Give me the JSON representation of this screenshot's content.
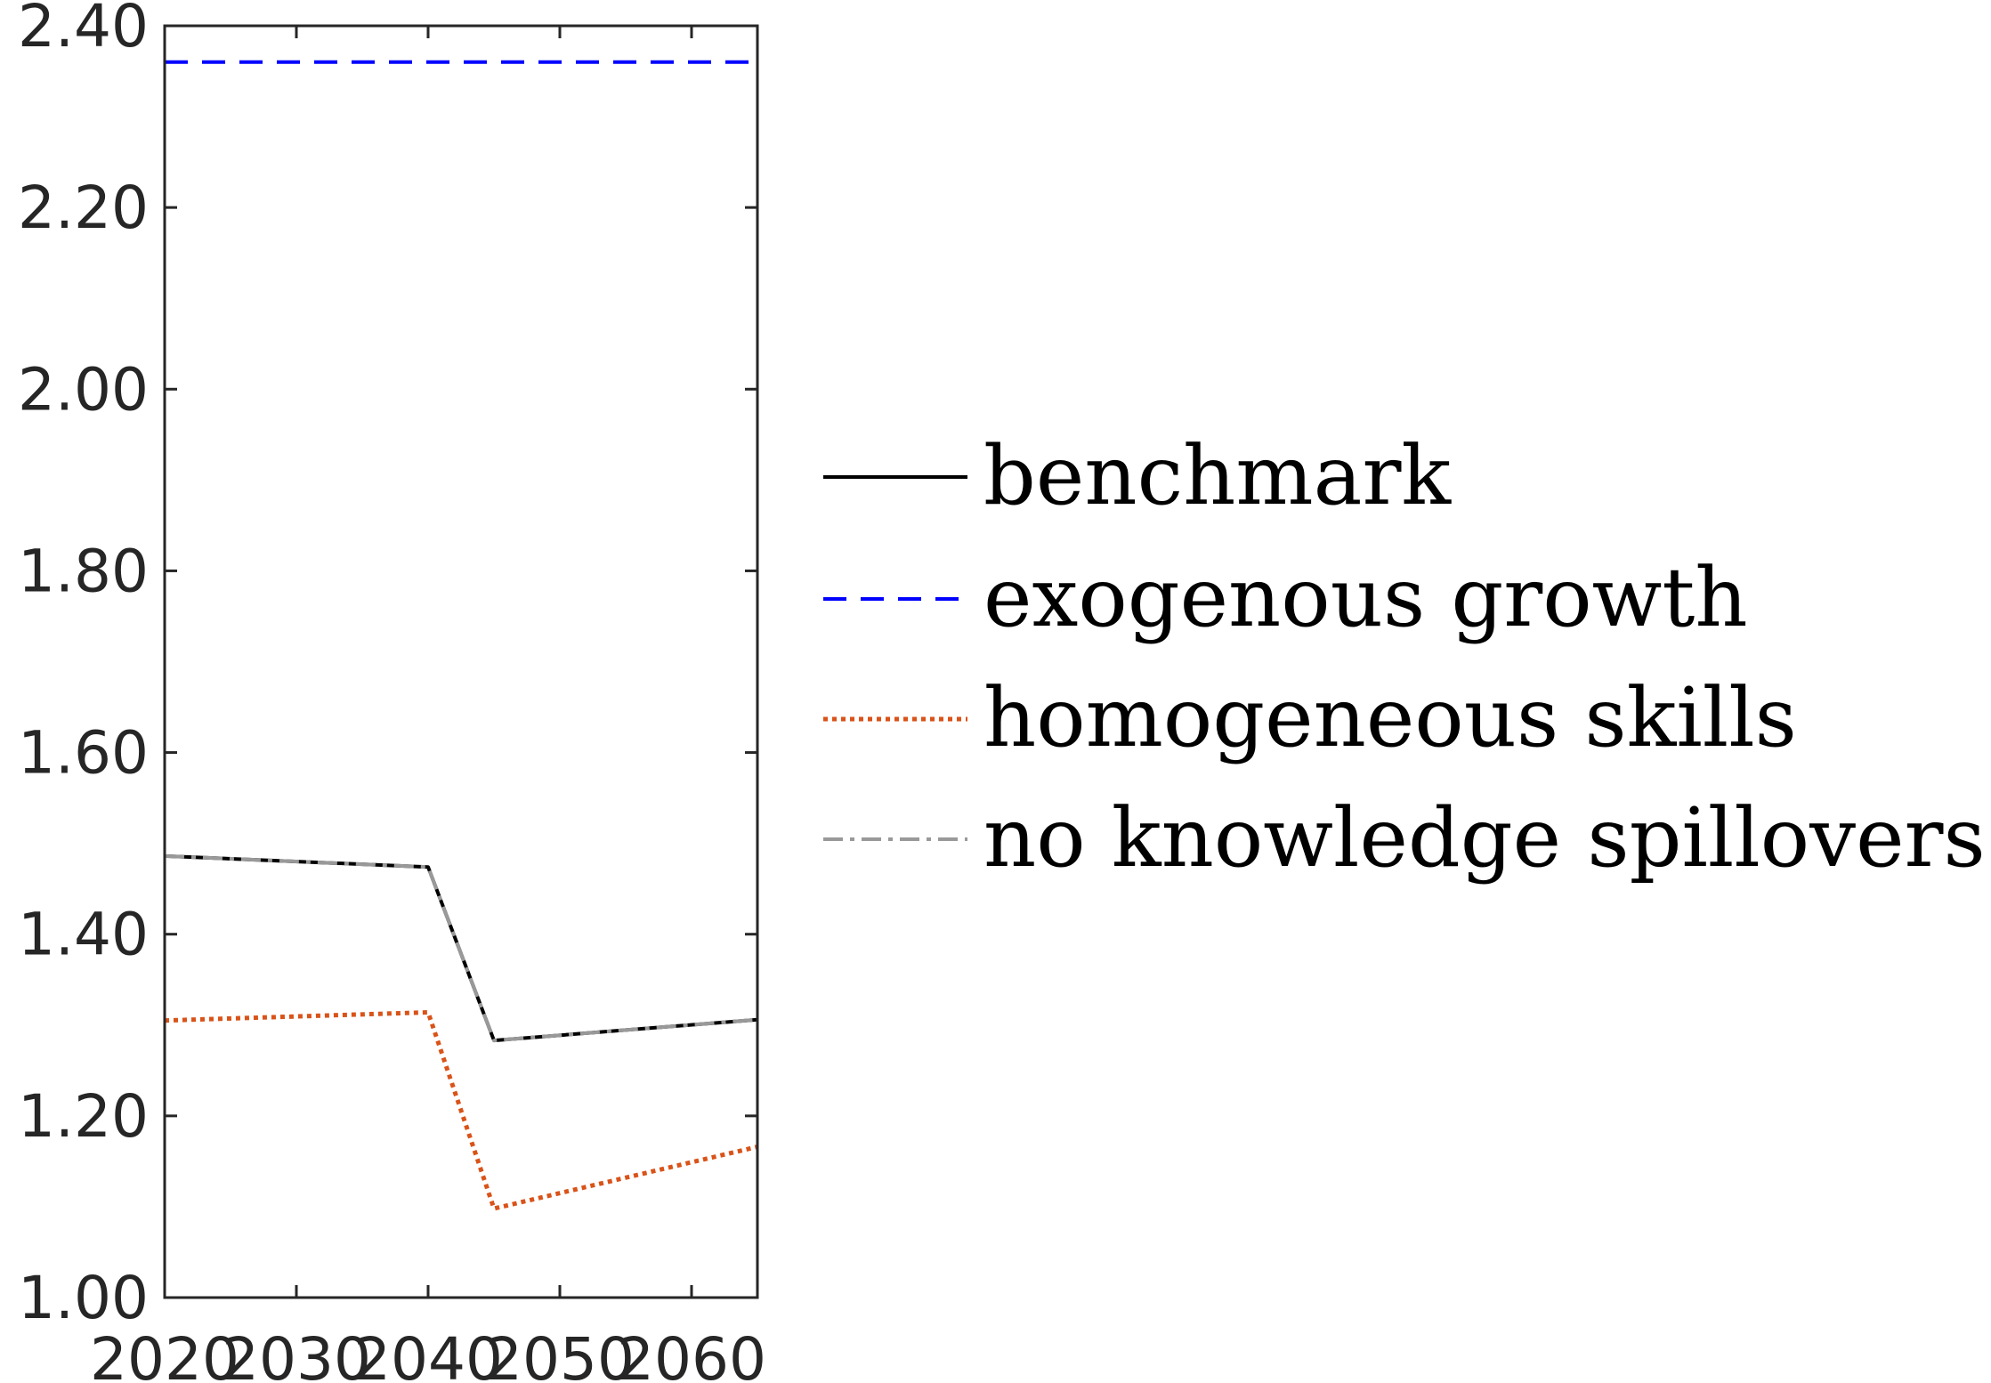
{
  "chart_data": {
    "type": "line",
    "title": "",
    "xlabel": "",
    "ylabel": "",
    "xlim": [
      2020,
      2065
    ],
    "ylim": [
      1.0,
      2.4
    ],
    "xticks": [
      2020,
      2030,
      2040,
      2050,
      2060
    ],
    "xtick_labels": [
      "2020",
      "2030",
      "2040",
      "2050",
      "2060"
    ],
    "yticks": [
      1.0,
      1.2,
      1.4,
      1.6,
      1.8,
      2.0,
      2.2,
      2.4
    ],
    "ytick_labels": [
      "1.00",
      "1.20",
      "1.40",
      "1.60",
      "1.80",
      "2.00",
      "2.20",
      "2.40"
    ],
    "grid": false,
    "legend_position": "right",
    "series": [
      {
        "name": "benchmark",
        "color": "#000000",
        "dash": "solid",
        "x": [
          2020,
          2040,
          2045,
          2065
        ],
        "y": [
          1.486,
          1.474,
          1.283,
          1.306
        ]
      },
      {
        "name": "exogenous growth",
        "color": "#0000ff",
        "dash": "dashed",
        "x": [
          2020,
          2065
        ],
        "y": [
          2.36,
          2.36
        ]
      },
      {
        "name": "homogeneous skills",
        "color": "#d95319",
        "dash": "dotted",
        "x": [
          2020,
          2040,
          2045,
          2065
        ],
        "y": [
          1.305,
          1.314,
          1.098,
          1.166
        ]
      },
      {
        "name": "no knowledge spillovers",
        "color": "#999999",
        "dash": "dashdot",
        "x": [
          2020,
          2040,
          2045,
          2065
        ],
        "y": [
          1.486,
          1.474,
          1.283,
          1.306
        ]
      }
    ]
  }
}
